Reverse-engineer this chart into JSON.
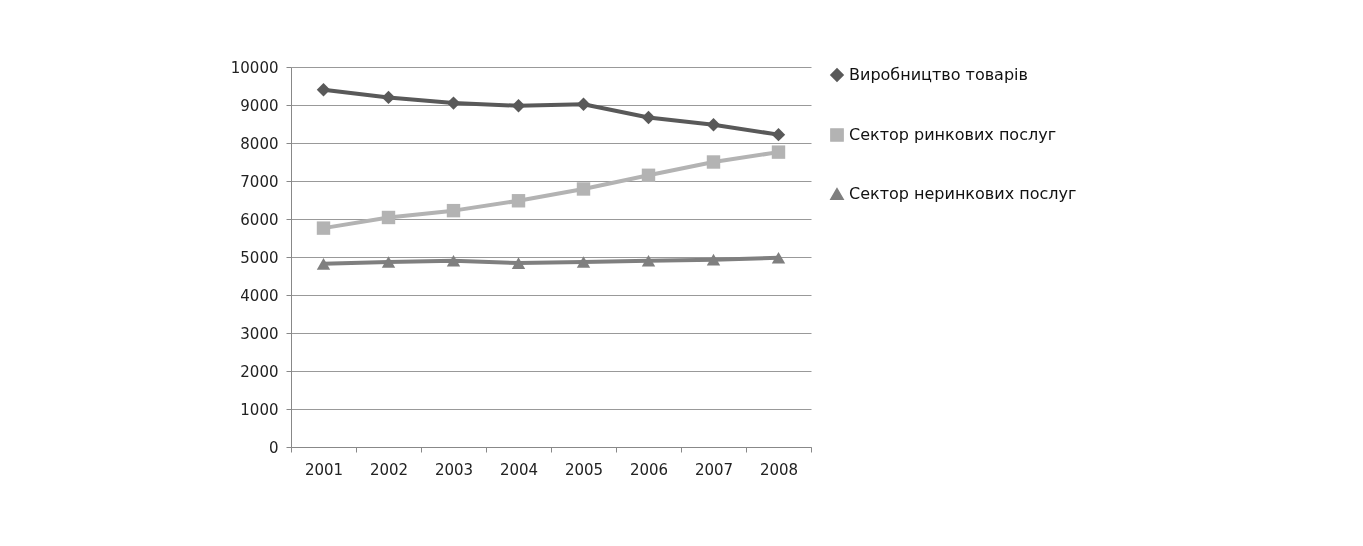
{
  "chart_data": {
    "type": "line",
    "categories": [
      "2001",
      "2002",
      "2003",
      "2004",
      "2005",
      "2006",
      "2007",
      "2008"
    ],
    "series": [
      {
        "name": "Виробництво товарів",
        "color": "#595959",
        "marker": "diamond",
        "values": [
          9400,
          9200,
          9050,
          8980,
          9020,
          8670,
          8480,
          8220
        ]
      },
      {
        "name": "Сектор ринкових послуг",
        "color": "#b3b3b3",
        "marker": "square",
        "values": [
          5760,
          6040,
          6220,
          6480,
          6790,
          7150,
          7500,
          7760
        ]
      },
      {
        "name": "Сектор неринкових послуг",
        "color": "#7f7f7f",
        "marker": "triangle",
        "values": [
          4820,
          4870,
          4900,
          4840,
          4870,
          4900,
          4930,
          4980
        ]
      }
    ],
    "ylim": [
      0,
      10000
    ],
    "yticks": [
      0,
      1000,
      2000,
      3000,
      4000,
      5000,
      6000,
      7000,
      8000,
      9000,
      10000
    ],
    "grid": "y",
    "legend": "right"
  }
}
